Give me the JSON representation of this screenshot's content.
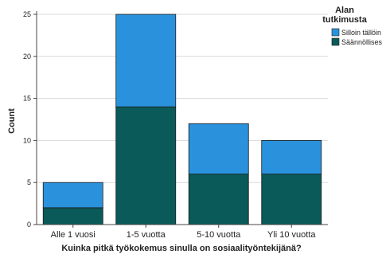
{
  "chart_data": {
    "type": "bar",
    "stacked": true,
    "categories": [
      "Alle 1 vuosi",
      "1-5 vuotta",
      "5-10 vuotta",
      "Yli 10 vuotta"
    ],
    "series": [
      {
        "name": "Säännöllisesti",
        "values": [
          2,
          14,
          6,
          6
        ],
        "color": "#0b5a5a"
      },
      {
        "name": "Silloin tällöin",
        "values": [
          3,
          11,
          6,
          4
        ],
        "color": "#2a92dc"
      }
    ],
    "xlabel": "Kuinka pitkä työkokemus sinulla on sosiaalityöntekijänä?",
    "ylabel": "Count",
    "ylim": [
      0,
      25
    ],
    "yticks": [
      0,
      5,
      10,
      15,
      20,
      25
    ],
    "grid": true,
    "legend": {
      "title_line1": "Alan",
      "title_line2": "tutkimusta",
      "placement": "top-right",
      "order": [
        "Silloin tällöin",
        "Säännöllisesti"
      ]
    }
  }
}
